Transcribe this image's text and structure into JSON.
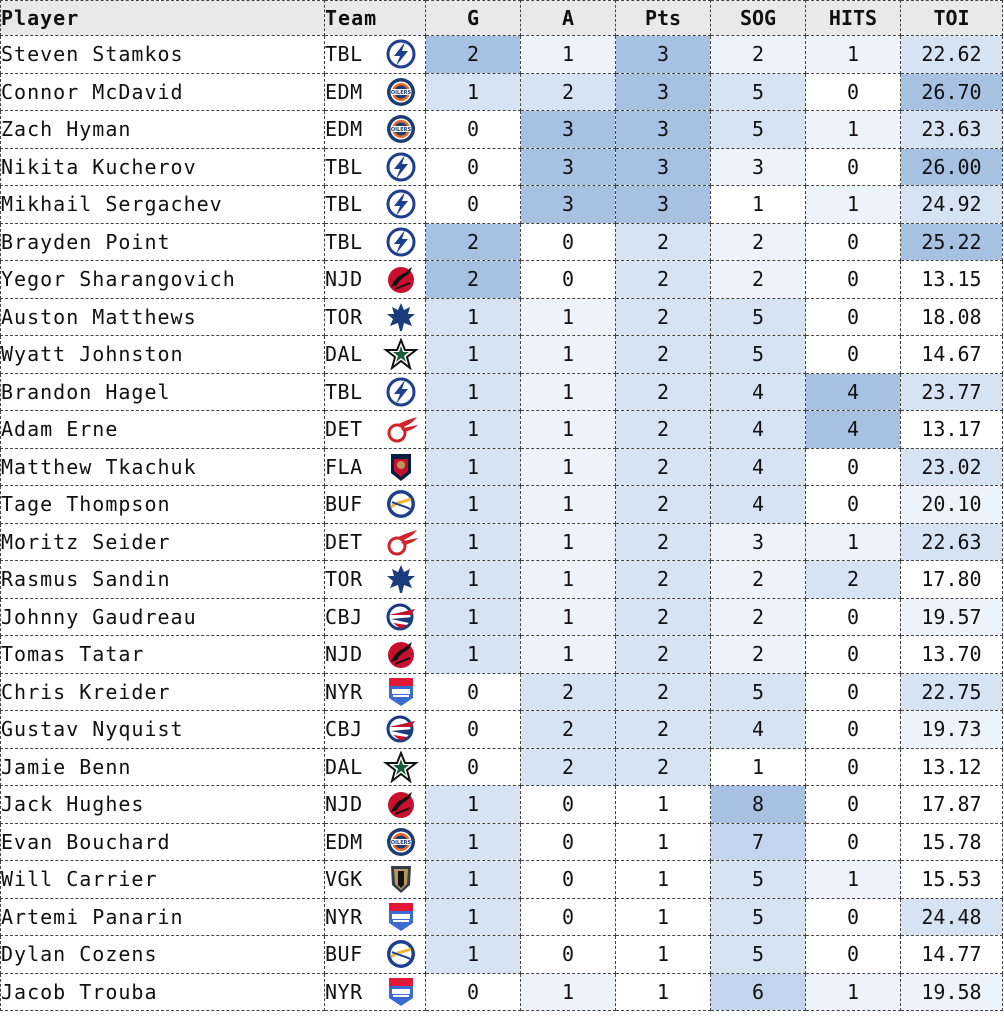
{
  "headers": {
    "player": "Player",
    "team": "Team",
    "g": "G",
    "a": "A",
    "pts": "Pts",
    "sog": "SOG",
    "hits": "HITS",
    "toi": "TOI"
  },
  "colors": {
    "shade1": "#eef3fb",
    "shade2": "#d6e3f3",
    "shade3": "#c3d5ee",
    "shade4": "#a7c1e3",
    "header_bg": "#e9e9e9"
  },
  "rows": [
    {
      "player": "Steven Stamkos",
      "team": "TBL",
      "logo": "lightning-logo-icon",
      "g": "2",
      "a": "1",
      "pts": "3",
      "sog": "2",
      "hits": "1",
      "toi": "22.62"
    },
    {
      "player": "Connor McDavid",
      "team": "EDM",
      "logo": "oilers-logo-icon",
      "g": "1",
      "a": "2",
      "pts": "3",
      "sog": "5",
      "hits": "0",
      "toi": "26.70"
    },
    {
      "player": "Zach Hyman",
      "team": "EDM",
      "logo": "oilers-logo-icon",
      "g": "0",
      "a": "3",
      "pts": "3",
      "sog": "5",
      "hits": "1",
      "toi": "23.63"
    },
    {
      "player": "Nikita Kucherov",
      "team": "TBL",
      "logo": "lightning-logo-icon",
      "g": "0",
      "a": "3",
      "pts": "3",
      "sog": "3",
      "hits": "0",
      "toi": "26.00"
    },
    {
      "player": "Mikhail Sergachev",
      "team": "TBL",
      "logo": "lightning-logo-icon",
      "g": "0",
      "a": "3",
      "pts": "3",
      "sog": "1",
      "hits": "1",
      "toi": "24.92"
    },
    {
      "player": "Brayden Point",
      "team": "TBL",
      "logo": "lightning-logo-icon",
      "g": "2",
      "a": "0",
      "pts": "2",
      "sog": "2",
      "hits": "0",
      "toi": "25.22"
    },
    {
      "player": "Yegor Sharangovich",
      "team": "NJD",
      "logo": "devils-logo-icon",
      "g": "2",
      "a": "0",
      "pts": "2",
      "sog": "2",
      "hits": "0",
      "toi": "13.15"
    },
    {
      "player": "Auston Matthews",
      "team": "TOR",
      "logo": "maple-leafs-logo-icon",
      "g": "1",
      "a": "1",
      "pts": "2",
      "sog": "5",
      "hits": "0",
      "toi": "18.08"
    },
    {
      "player": "Wyatt Johnston",
      "team": "DAL",
      "logo": "stars-logo-icon",
      "g": "1",
      "a": "1",
      "pts": "2",
      "sog": "5",
      "hits": "0",
      "toi": "14.67"
    },
    {
      "player": "Brandon Hagel",
      "team": "TBL",
      "logo": "lightning-logo-icon",
      "g": "1",
      "a": "1",
      "pts": "2",
      "sog": "4",
      "hits": "4",
      "toi": "23.77"
    },
    {
      "player": "Adam Erne",
      "team": "DET",
      "logo": "red-wings-logo-icon",
      "g": "1",
      "a": "1",
      "pts": "2",
      "sog": "4",
      "hits": "4",
      "toi": "13.17"
    },
    {
      "player": "Matthew Tkachuk",
      "team": "FLA",
      "logo": "panthers-logo-icon",
      "g": "1",
      "a": "1",
      "pts": "2",
      "sog": "4",
      "hits": "0",
      "toi": "23.02"
    },
    {
      "player": "Tage Thompson",
      "team": "BUF",
      "logo": "sabres-logo-icon",
      "g": "1",
      "a": "1",
      "pts": "2",
      "sog": "4",
      "hits": "0",
      "toi": "20.10"
    },
    {
      "player": "Moritz Seider",
      "team": "DET",
      "logo": "red-wings-logo-icon",
      "g": "1",
      "a": "1",
      "pts": "2",
      "sog": "3",
      "hits": "1",
      "toi": "22.63"
    },
    {
      "player": "Rasmus Sandin",
      "team": "TOR",
      "logo": "maple-leafs-logo-icon",
      "g": "1",
      "a": "1",
      "pts": "2",
      "sog": "2",
      "hits": "2",
      "toi": "17.80"
    },
    {
      "player": "Johnny Gaudreau",
      "team": "CBJ",
      "logo": "blue-jackets-logo-icon",
      "g": "1",
      "a": "1",
      "pts": "2",
      "sog": "2",
      "hits": "0",
      "toi": "19.57"
    },
    {
      "player": "Tomas Tatar",
      "team": "NJD",
      "logo": "devils-logo-icon",
      "g": "1",
      "a": "1",
      "pts": "2",
      "sog": "2",
      "hits": "0",
      "toi": "13.70"
    },
    {
      "player": "Chris Kreider",
      "team": "NYR",
      "logo": "rangers-logo-icon",
      "g": "0",
      "a": "2",
      "pts": "2",
      "sog": "5",
      "hits": "0",
      "toi": "22.75"
    },
    {
      "player": "Gustav Nyquist",
      "team": "CBJ",
      "logo": "blue-jackets-logo-icon",
      "g": "0",
      "a": "2",
      "pts": "2",
      "sog": "4",
      "hits": "0",
      "toi": "19.73"
    },
    {
      "player": "Jamie Benn",
      "team": "DAL",
      "logo": "stars-logo-icon",
      "g": "0",
      "a": "2",
      "pts": "2",
      "sog": "1",
      "hits": "0",
      "toi": "13.12"
    },
    {
      "player": "Jack Hughes",
      "team": "NJD",
      "logo": "devils-logo-icon",
      "g": "1",
      "a": "0",
      "pts": "1",
      "sog": "8",
      "hits": "0",
      "toi": "17.87"
    },
    {
      "player": "Evan Bouchard",
      "team": "EDM",
      "logo": "oilers-logo-icon",
      "g": "1",
      "a": "0",
      "pts": "1",
      "sog": "7",
      "hits": "0",
      "toi": "15.78"
    },
    {
      "player": "Will Carrier",
      "team": "VGK",
      "logo": "golden-knights-logo-icon",
      "g": "1",
      "a": "0",
      "pts": "1",
      "sog": "5",
      "hits": "1",
      "toi": "15.53"
    },
    {
      "player": "Artemi Panarin",
      "team": "NYR",
      "logo": "rangers-logo-icon",
      "g": "1",
      "a": "0",
      "pts": "1",
      "sog": "5",
      "hits": "0",
      "toi": "24.48"
    },
    {
      "player": "Dylan Cozens",
      "team": "BUF",
      "logo": "sabres-logo-icon",
      "g": "1",
      "a": "0",
      "pts": "1",
      "sog": "5",
      "hits": "0",
      "toi": "14.77"
    },
    {
      "player": "Jacob Trouba",
      "team": "NYR",
      "logo": "rangers-logo-icon",
      "g": "0",
      "a": "1",
      "pts": "1",
      "sog": "6",
      "hits": "1",
      "toi": "19.58"
    }
  ]
}
